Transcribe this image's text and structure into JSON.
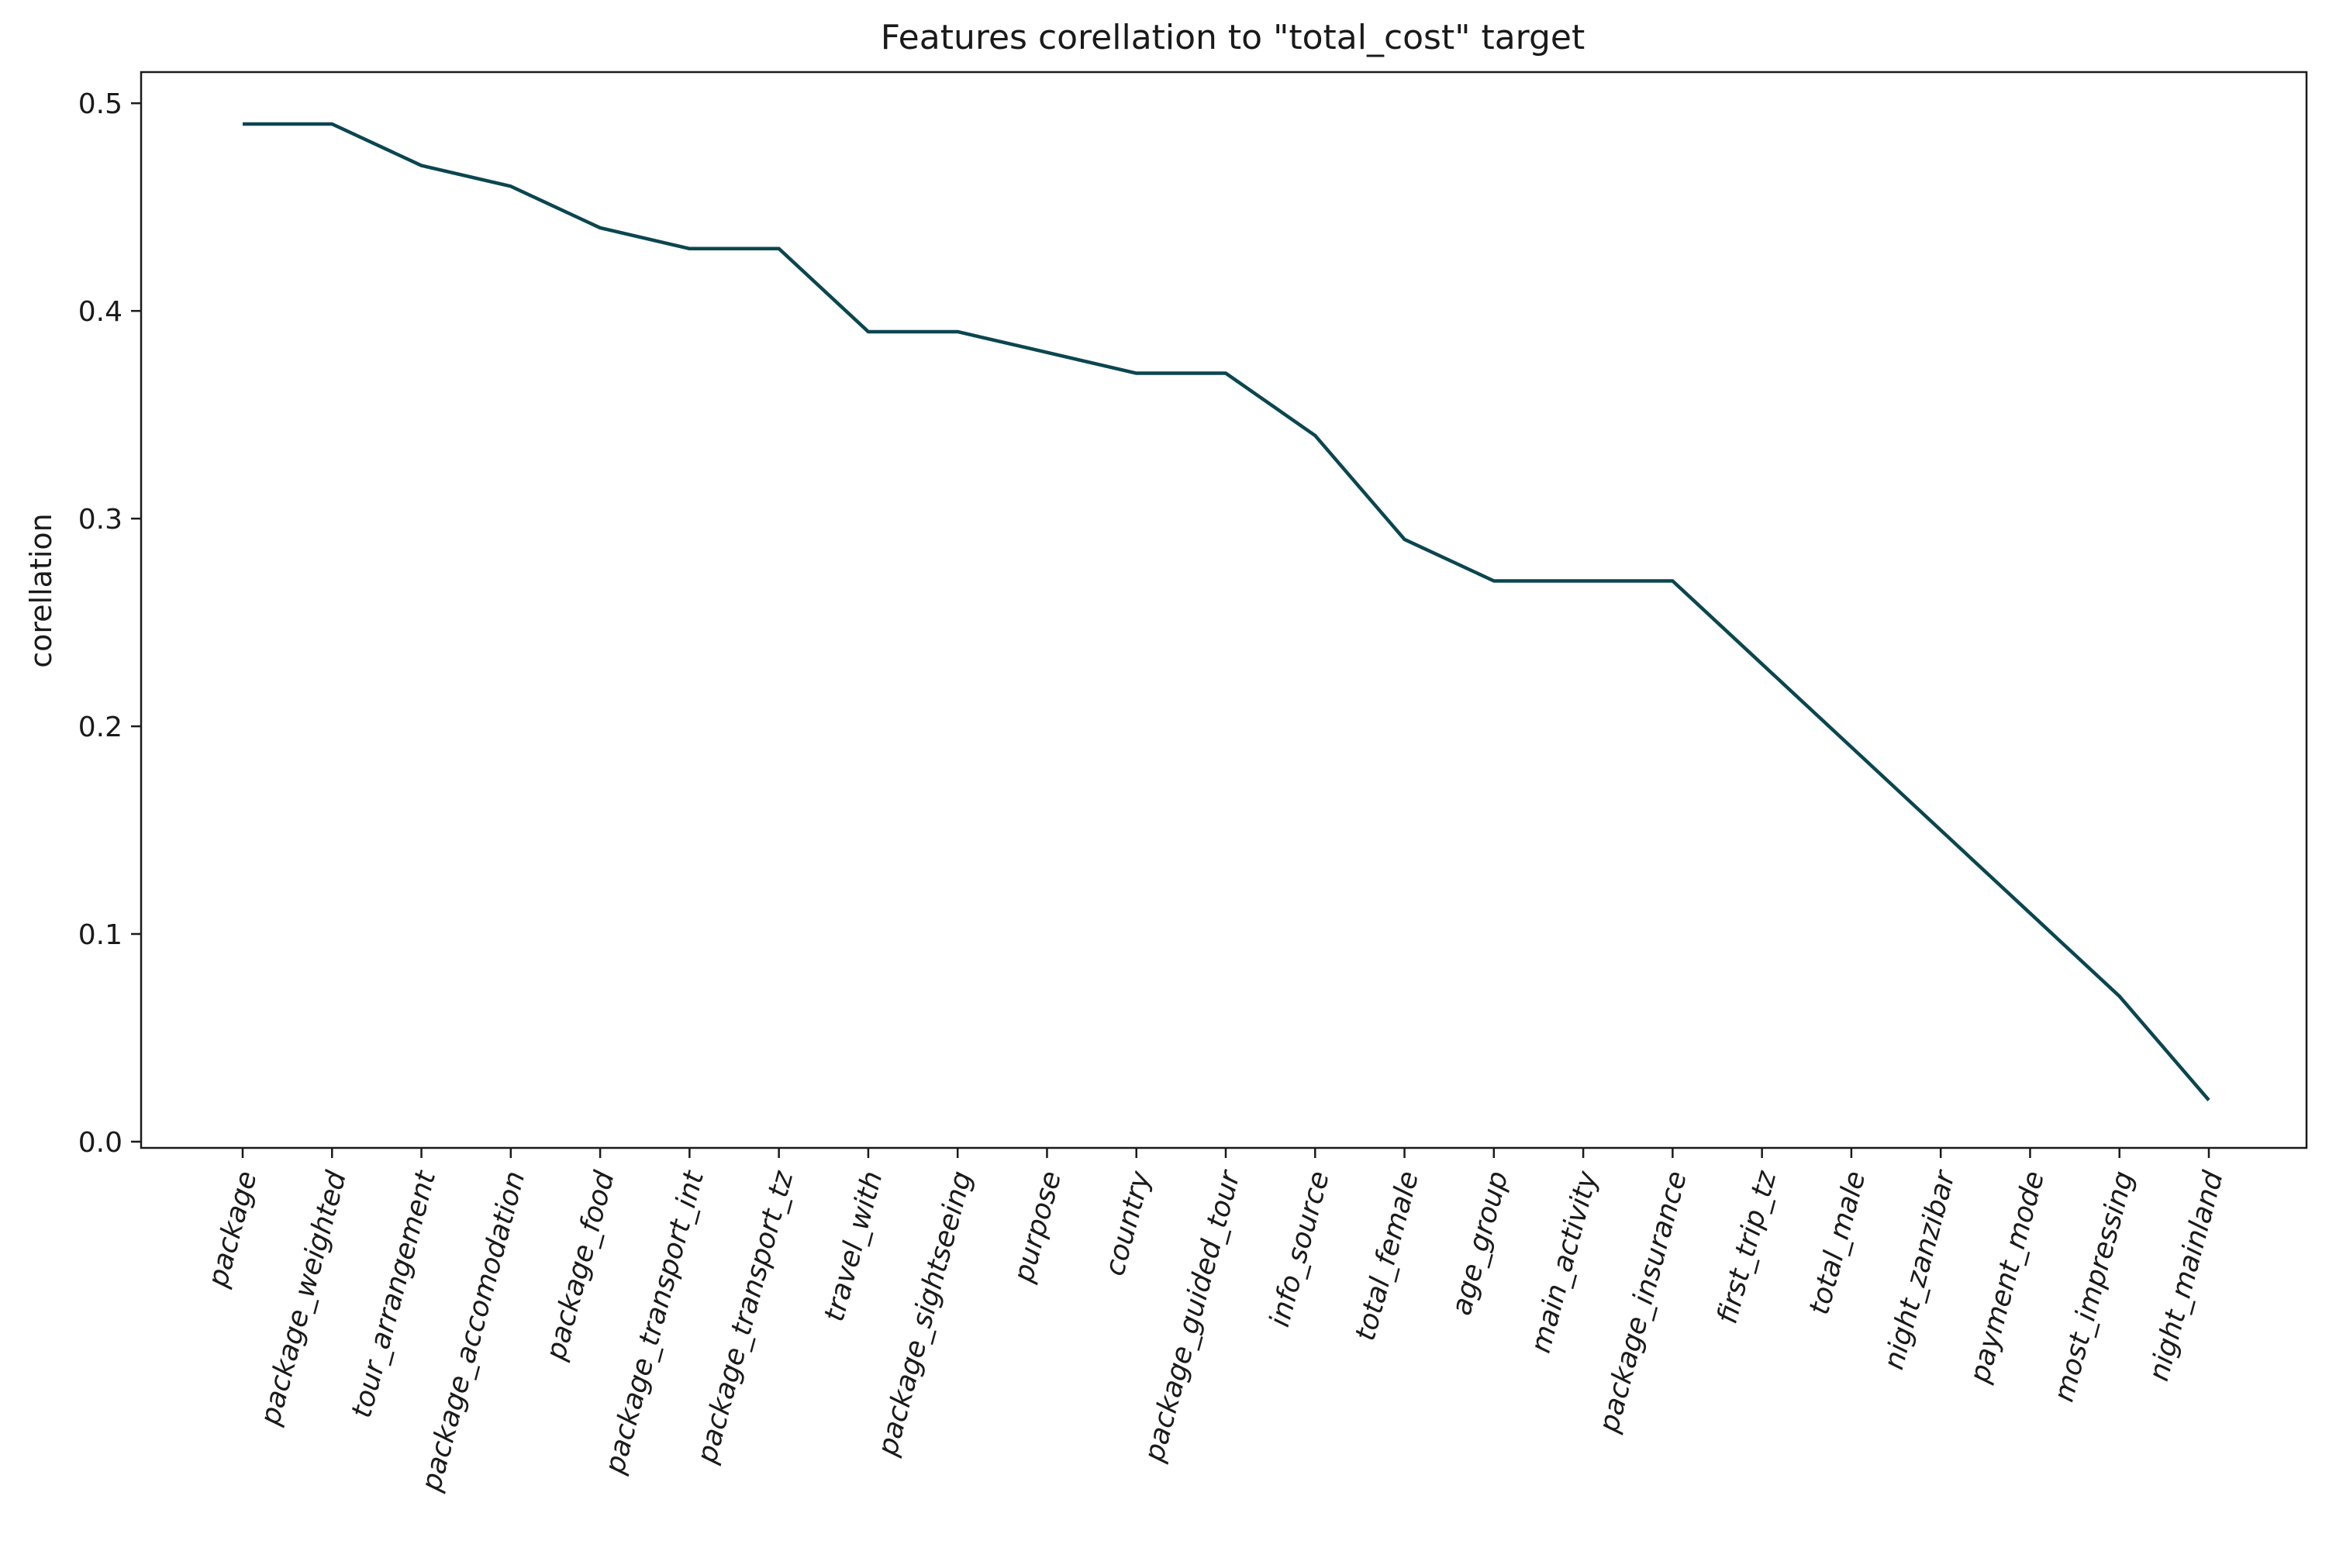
{
  "chart_data": {
    "type": "line",
    "title": "Features corellation to \"total_cost\" target",
    "xlabel": "",
    "ylabel": "corellation",
    "categories": [
      "package",
      "package_weighted",
      "tour_arrangement",
      "package_accomodation",
      "package_food",
      "package_transport_int",
      "package_transport_tz",
      "travel_with",
      "package_sightseeing",
      "purpose",
      "country",
      "package_guided_tour",
      "info_source",
      "total_female",
      "age_group",
      "main_activity",
      "package_insurance",
      "first_trip_tz",
      "total_male",
      "night_zanzibar",
      "payment_mode",
      "most_impressing",
      "night_mainland"
    ],
    "values": [
      0.49,
      0.49,
      0.47,
      0.46,
      0.44,
      0.43,
      0.43,
      0.39,
      0.39,
      0.38,
      0.37,
      0.37,
      0.34,
      0.29,
      0.27,
      0.27,
      0.27,
      0.23,
      0.19,
      0.15,
      0.11,
      0.07,
      0.02
    ],
    "ylim": [
      -0.003,
      0.515
    ],
    "yticks": [
      0.0,
      0.1,
      0.2,
      0.3,
      0.4,
      0.5
    ],
    "ytick_labels": [
      "0.0",
      "0.1",
      "0.2",
      "0.3",
      "0.4",
      "0.5"
    ],
    "grid": false,
    "line_color": "#0a4650"
  }
}
